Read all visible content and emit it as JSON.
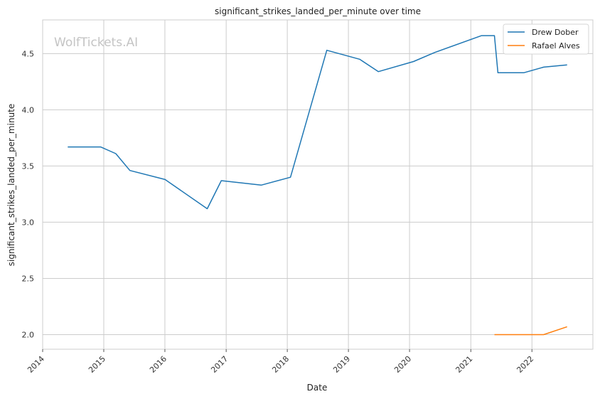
{
  "watermark": "WolfTickets.AI",
  "colors": {
    "grid": "#cccccc",
    "axes": "#cccccc",
    "background": "#ffffff"
  },
  "chart_data": {
    "type": "line",
    "title": "significant_strikes_landed_per_minute over time",
    "xlabel": "Date",
    "ylabel": "significant_strikes_landed_per_minute",
    "xlim": [
      "2014-01-01",
      "2022-12-31"
    ],
    "ylim": [
      1.87,
      4.8
    ],
    "x_ticks": [
      "2014",
      "2015",
      "2016",
      "2017",
      "2018",
      "2019",
      "2020",
      "2021",
      "2022"
    ],
    "y_ticks": [
      "2.0",
      "2.5",
      "3.0",
      "3.5",
      "4.0",
      "4.5"
    ],
    "grid": true,
    "legend_position": "top-right",
    "series": [
      {
        "name": "Drew Dober",
        "color": "#1f77b4",
        "points": [
          [
            "2014-05-31",
            3.67
          ],
          [
            "2014-12-13",
            3.67
          ],
          [
            "2015-03-14",
            3.61
          ],
          [
            "2015-06-06",
            3.46
          ],
          [
            "2016-01-02",
            3.38
          ],
          [
            "2016-09-10",
            3.12
          ],
          [
            "2016-12-03",
            3.37
          ],
          [
            "2017-07-29",
            3.33
          ],
          [
            "2018-01-20",
            3.4
          ],
          [
            "2018-08-25",
            4.53
          ],
          [
            "2019-03-09",
            4.45
          ],
          [
            "2019-06-29",
            4.34
          ],
          [
            "2020-01-25",
            4.43
          ],
          [
            "2020-05-30",
            4.51
          ],
          [
            "2021-03-06",
            4.66
          ],
          [
            "2021-05-22",
            4.66
          ],
          [
            "2021-06-12",
            4.33
          ],
          [
            "2021-11-13",
            4.33
          ],
          [
            "2022-03-12",
            4.38
          ],
          [
            "2022-07-30",
            4.4
          ]
        ]
      },
      {
        "name": "Rafael Alves",
        "color": "#ff7f0e",
        "points": [
          [
            "2021-05-22",
            2.0
          ],
          [
            "2021-11-13",
            2.0
          ],
          [
            "2022-03-12",
            2.0
          ],
          [
            "2022-07-30",
            2.07
          ]
        ]
      }
    ]
  }
}
